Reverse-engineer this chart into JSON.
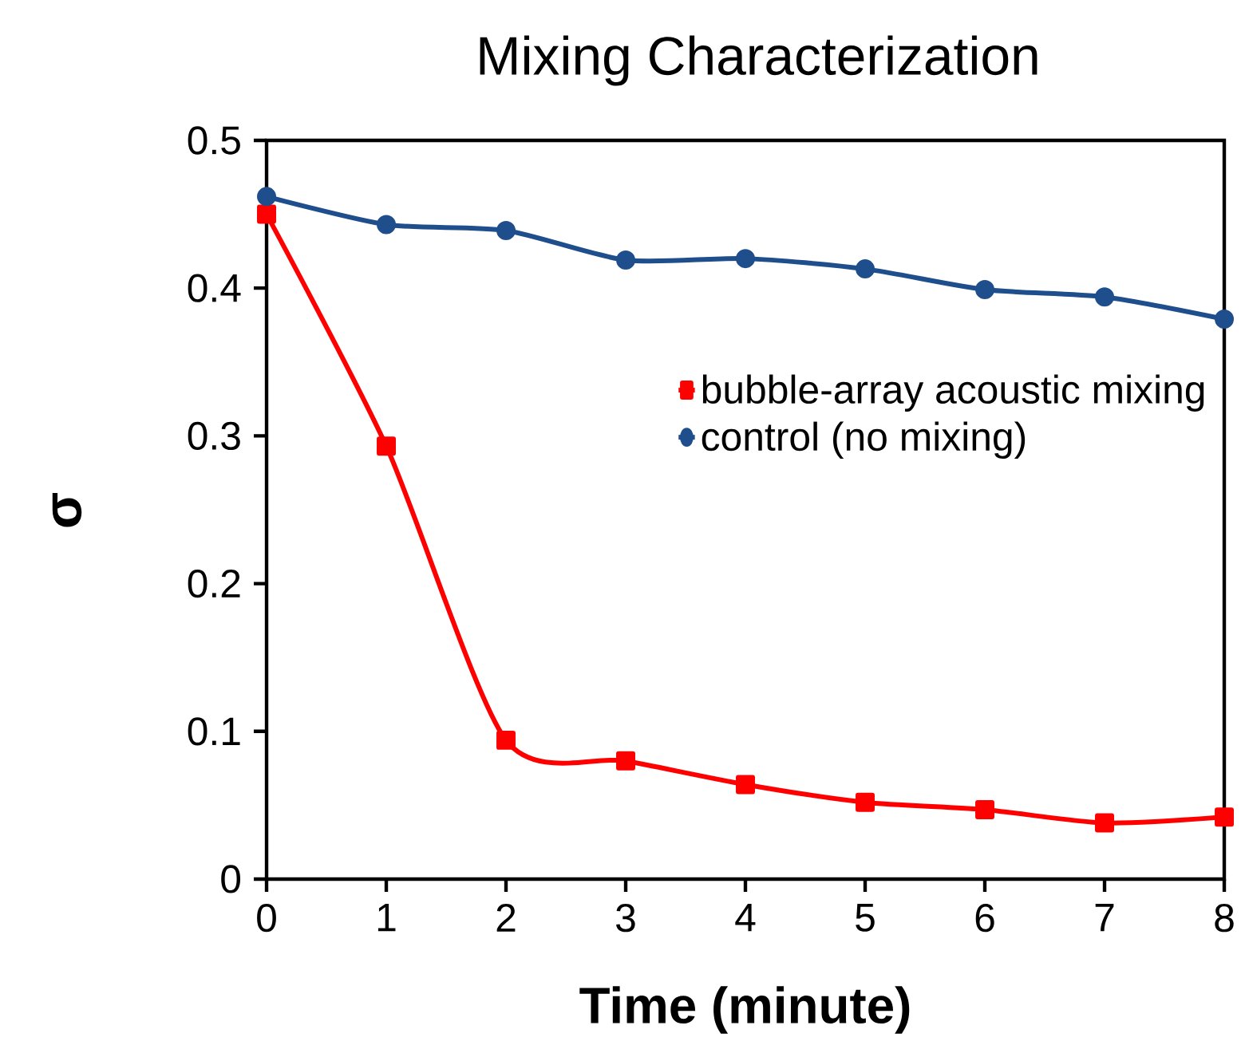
{
  "chart_data": {
    "type": "line",
    "title": "Mixing Characterization",
    "xlabel": "Time  (minute)",
    "ylabel": "σ",
    "x": [
      0,
      1,
      2,
      3,
      4,
      5,
      6,
      7,
      8
    ],
    "series": [
      {
        "name": "bubble-array acoustic mixing",
        "color": "#ff0000",
        "marker": "square",
        "values": [
          0.45,
          0.293,
          0.094,
          0.08,
          0.064,
          0.052,
          0.047,
          0.038,
          0.042
        ]
      },
      {
        "name": "control (no mixing)",
        "color": "#1f4e8c",
        "marker": "circle",
        "values": [
          0.462,
          0.443,
          0.439,
          0.419,
          0.42,
          0.413,
          0.399,
          0.394,
          0.379
        ]
      }
    ],
    "xlim": [
      0,
      8
    ],
    "xticks": [
      0,
      1,
      2,
      3,
      4,
      5,
      6,
      7,
      8
    ],
    "ylim": [
      0,
      0.5
    ],
    "yticks": [
      0,
      0.1,
      0.2,
      0.3,
      0.4,
      0.5
    ],
    "grid": false,
    "legend": "right",
    "line_style": "solid"
  }
}
